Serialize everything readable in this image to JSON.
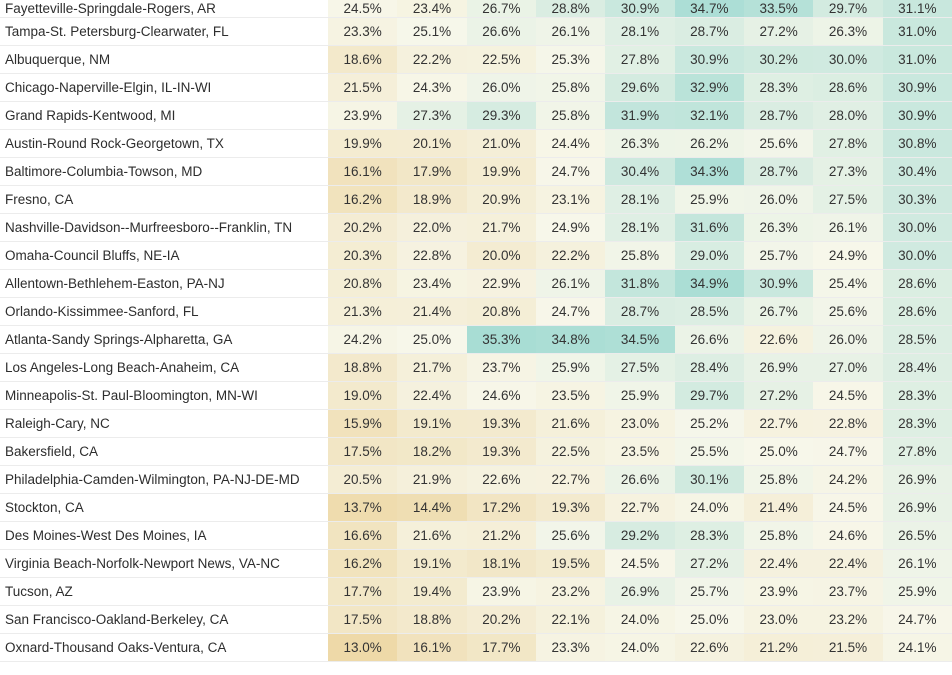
{
  "table": {
    "rows": [
      {
        "metro": "Fayetteville-Springdale-Rogers, AR",
        "values": [
          "24.5%",
          "23.4%",
          "26.7%",
          "28.8%",
          "30.9%",
          "34.7%",
          "33.5%",
          "29.7%",
          "31.1%"
        ]
      },
      {
        "metro": "Tampa-St. Petersburg-Clearwater, FL",
        "values": [
          "23.3%",
          "25.1%",
          "26.6%",
          "26.1%",
          "28.1%",
          "28.7%",
          "27.2%",
          "26.3%",
          "31.0%"
        ]
      },
      {
        "metro": "Albuquerque, NM",
        "values": [
          "18.6%",
          "22.2%",
          "22.5%",
          "25.3%",
          "27.8%",
          "30.9%",
          "30.2%",
          "30.0%",
          "31.0%"
        ]
      },
      {
        "metro": "Chicago-Naperville-Elgin, IL-IN-WI",
        "values": [
          "21.5%",
          "24.3%",
          "26.0%",
          "25.8%",
          "29.6%",
          "32.9%",
          "28.3%",
          "28.6%",
          "30.9%"
        ]
      },
      {
        "metro": "Grand Rapids-Kentwood, MI",
        "values": [
          "23.9%",
          "27.3%",
          "29.3%",
          "25.8%",
          "31.9%",
          "32.1%",
          "28.7%",
          "28.0%",
          "30.9%"
        ]
      },
      {
        "metro": "Austin-Round Rock-Georgetown, TX",
        "values": [
          "19.9%",
          "20.1%",
          "21.0%",
          "24.4%",
          "26.3%",
          "26.2%",
          "25.6%",
          "27.8%",
          "30.8%"
        ]
      },
      {
        "metro": "Baltimore-Columbia-Towson, MD",
        "values": [
          "16.1%",
          "17.9%",
          "19.9%",
          "24.7%",
          "30.4%",
          "34.3%",
          "28.7%",
          "27.3%",
          "30.4%"
        ]
      },
      {
        "metro": "Fresno, CA",
        "values": [
          "16.2%",
          "18.9%",
          "20.9%",
          "23.1%",
          "28.1%",
          "25.9%",
          "26.0%",
          "27.5%",
          "30.3%"
        ]
      },
      {
        "metro": "Nashville-Davidson--Murfreesboro--Franklin, TN",
        "values": [
          "20.2%",
          "22.0%",
          "21.7%",
          "24.9%",
          "28.1%",
          "31.6%",
          "26.3%",
          "26.1%",
          "30.0%"
        ]
      },
      {
        "metro": "Omaha-Council Bluffs, NE-IA",
        "values": [
          "20.3%",
          "22.8%",
          "20.0%",
          "22.2%",
          "25.8%",
          "29.0%",
          "25.7%",
          "24.9%",
          "30.0%"
        ]
      },
      {
        "metro": "Allentown-Bethlehem-Easton, PA-NJ",
        "values": [
          "20.8%",
          "23.4%",
          "22.9%",
          "26.1%",
          "31.8%",
          "34.9%",
          "30.9%",
          "25.4%",
          "28.6%"
        ]
      },
      {
        "metro": "Orlando-Kissimmee-Sanford, FL",
        "values": [
          "21.3%",
          "21.4%",
          "20.8%",
          "24.7%",
          "28.7%",
          "28.5%",
          "26.7%",
          "25.6%",
          "28.6%"
        ]
      },
      {
        "metro": "Atlanta-Sandy Springs-Alpharetta, GA",
        "values": [
          "24.2%",
          "25.0%",
          "35.3%",
          "34.8%",
          "34.5%",
          "26.6%",
          "22.6%",
          "26.0%",
          "28.5%"
        ]
      },
      {
        "metro": "Los Angeles-Long Beach-Anaheim, CA",
        "values": [
          "18.8%",
          "21.7%",
          "23.7%",
          "25.9%",
          "27.5%",
          "28.4%",
          "26.9%",
          "27.0%",
          "28.4%"
        ]
      },
      {
        "metro": "Minneapolis-St. Paul-Bloomington, MN-WI",
        "values": [
          "19.0%",
          "22.4%",
          "24.6%",
          "23.5%",
          "25.9%",
          "29.7%",
          "27.2%",
          "24.5%",
          "28.3%"
        ]
      },
      {
        "metro": "Raleigh-Cary, NC",
        "values": [
          "15.9%",
          "19.1%",
          "19.3%",
          "21.6%",
          "23.0%",
          "25.2%",
          "22.7%",
          "22.8%",
          "28.3%"
        ]
      },
      {
        "metro": "Bakersfield, CA",
        "values": [
          "17.5%",
          "18.2%",
          "19.3%",
          "22.5%",
          "23.5%",
          "25.5%",
          "25.0%",
          "24.7%",
          "27.8%"
        ]
      },
      {
        "metro": "Philadelphia-Camden-Wilmington, PA-NJ-DE-MD",
        "values": [
          "20.5%",
          "21.9%",
          "22.6%",
          "22.7%",
          "26.6%",
          "30.1%",
          "25.8%",
          "24.2%",
          "26.9%"
        ]
      },
      {
        "metro": "Stockton, CA",
        "values": [
          "13.7%",
          "14.4%",
          "17.2%",
          "19.3%",
          "22.7%",
          "24.0%",
          "21.4%",
          "24.5%",
          "26.9%"
        ]
      },
      {
        "metro": "Des Moines-West Des Moines, IA",
        "values": [
          "16.6%",
          "21.6%",
          "21.2%",
          "25.6%",
          "29.2%",
          "28.3%",
          "25.8%",
          "24.6%",
          "26.5%"
        ]
      },
      {
        "metro": "Virginia Beach-Norfolk-Newport News, VA-NC",
        "values": [
          "16.2%",
          "19.1%",
          "18.1%",
          "19.5%",
          "24.5%",
          "27.2%",
          "22.4%",
          "22.4%",
          "26.1%"
        ]
      },
      {
        "metro": "Tucson, AZ",
        "values": [
          "17.7%",
          "19.4%",
          "23.9%",
          "23.2%",
          "26.9%",
          "25.7%",
          "23.9%",
          "23.7%",
          "25.9%"
        ]
      },
      {
        "metro": "San Francisco-Oakland-Berkeley, CA",
        "values": [
          "17.5%",
          "18.8%",
          "20.2%",
          "22.1%",
          "24.0%",
          "25.0%",
          "23.0%",
          "23.2%",
          "24.7%"
        ]
      },
      {
        "metro": "Oxnard-Thousand Oaks-Ventura, CA",
        "values": [
          "13.0%",
          "16.1%",
          "17.7%",
          "23.3%",
          "24.0%",
          "22.6%",
          "21.2%",
          "21.5%",
          "24.1%"
        ]
      }
    ]
  },
  "colors": {
    "low": "#eed9a8",
    "mid": "#f7f7ea",
    "high": "#a6dcd4",
    "text": "#333333"
  }
}
